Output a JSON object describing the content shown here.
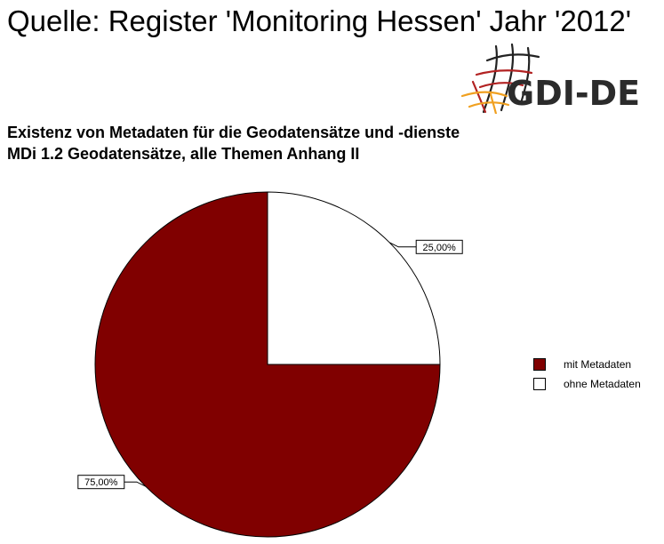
{
  "header": {
    "source_line": "Quelle: Register 'Monitoring Hessen' Jahr '2012'",
    "logo_text": "GDI-DE",
    "title": "Existenz von Metadaten für die Geodatensätze und -dienste",
    "subtitle": "MDi 1.2 Geodatensätze, alle Themen Anhang II"
  },
  "chart_data": {
    "type": "pie",
    "title": "Existenz von Metadaten für die Geodatensätze und -dienste",
    "subtitle": "MDi 1.2 Geodatensätze, alle Themen Anhang II",
    "slices": [
      {
        "label": "mit Metadaten",
        "value": 75.0,
        "display": "75,00%",
        "color": "#800000"
      },
      {
        "label": "ohne Metadaten",
        "value": 25.0,
        "display": "25,00%",
        "color": "#ffffff"
      }
    ],
    "legend_position": "right",
    "start_angle_deg": 90,
    "direction": "counterclockwise",
    "label_style": "boxed callouts outside the pie"
  },
  "colors": {
    "mit_metadaten": "#800000",
    "ohne_metadaten": "#ffffff",
    "logo_text": "#2b2b2b",
    "logo_red": "#b22222",
    "logo_orange": "#f0a020"
  }
}
